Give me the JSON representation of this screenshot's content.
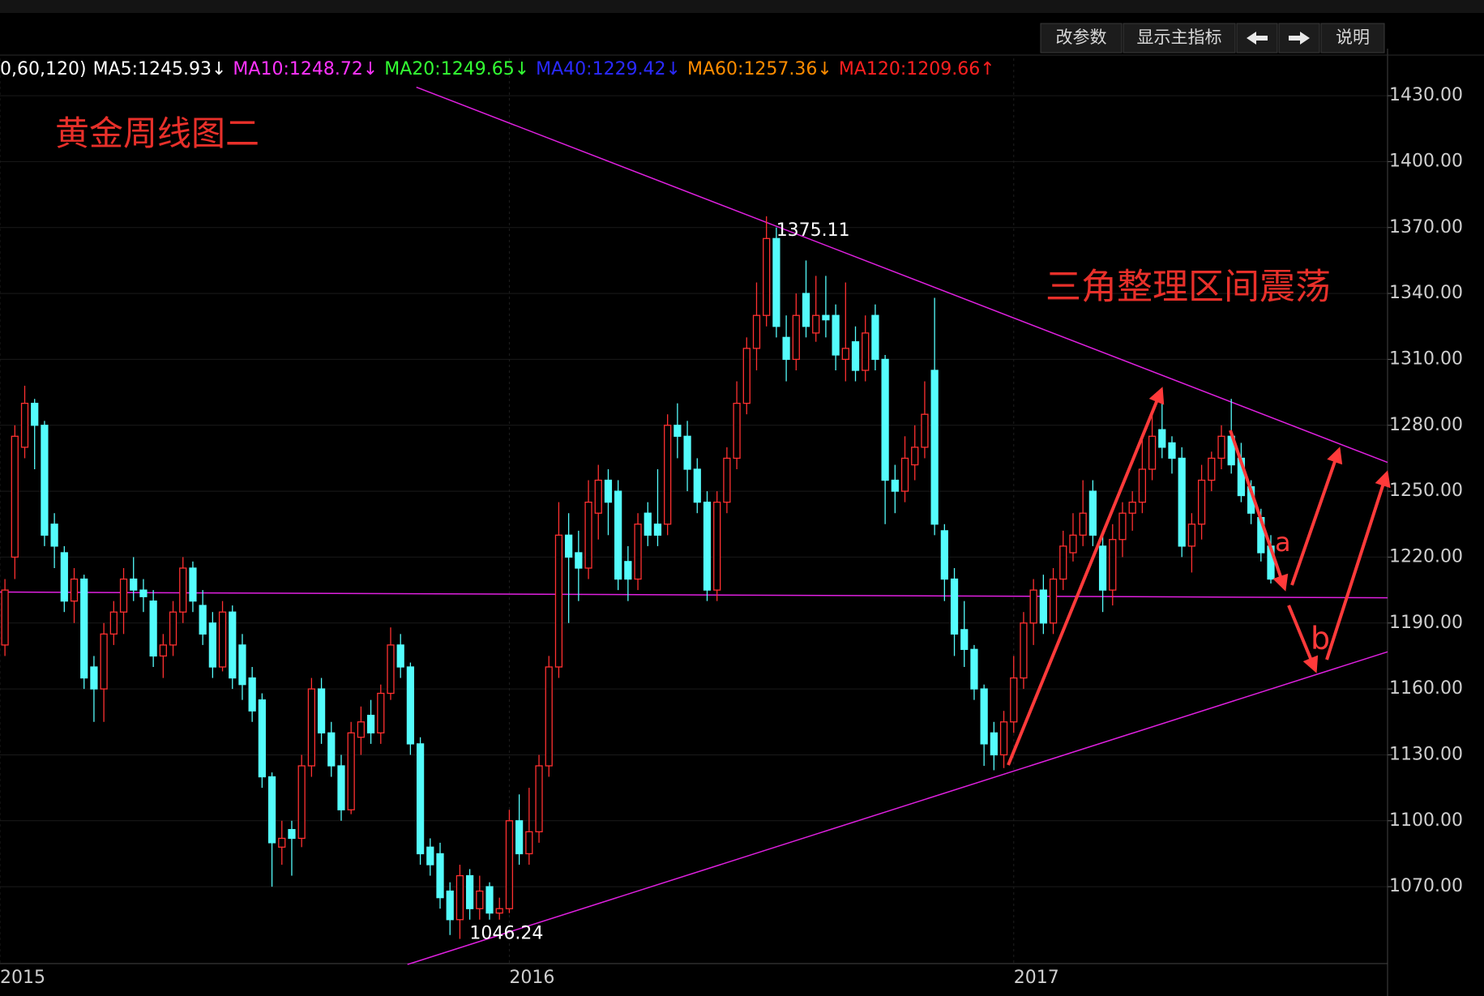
{
  "chart_data": {
    "type": "candlestick",
    "title": "黄金周线图二",
    "annotation": "三角整理区间震荡",
    "wave_labels": [
      "a",
      "b"
    ],
    "buttons": [
      "改参数",
      "显示主指标",
      "说明"
    ],
    "indicator_prefix": "0,60,120)",
    "indicators": [
      {
        "label": "MA5:1245.93↓",
        "color": "#ffffff"
      },
      {
        "label": "MA10:1248.72↓",
        "color": "#ff33ff"
      },
      {
        "label": "MA20:1249.65↓",
        "color": "#33ff33"
      },
      {
        "label": "MA40:1229.42↓",
        "color": "#2a2aff"
      },
      {
        "label": "MA60:1257.36↓",
        "color": "#ff8c00"
      },
      {
        "label": "MA120:1209.66↑",
        "color": "#ff2020"
      }
    ],
    "up_color": "#ff3030",
    "down_color": "#54fcfc",
    "xlim": [
      -0.5,
      139.8
    ],
    "ylim": [
      1035,
      1447
    ],
    "xticks": [
      {
        "value": -0.5,
        "label": "2015"
      },
      {
        "value": 51,
        "label": "2016"
      },
      {
        "value": 102,
        "label": "2017"
      }
    ],
    "yticks": [
      {
        "value": 1070,
        "label": "1070.00"
      },
      {
        "value": 1100,
        "label": "1100.00"
      },
      {
        "value": 1130,
        "label": "1130.00"
      },
      {
        "value": 1160,
        "label": "1160.00"
      },
      {
        "value": 1190,
        "label": "1190.00"
      },
      {
        "value": 1220,
        "label": "1220.00"
      },
      {
        "value": 1250,
        "label": "1250.00"
      },
      {
        "value": 1280,
        "label": "1280.00"
      },
      {
        "value": 1310,
        "label": "1310.00"
      },
      {
        "value": 1340,
        "label": "1340.00"
      },
      {
        "value": 1370,
        "label": "1370.00"
      },
      {
        "value": 1400,
        "label": "1400.00"
      },
      {
        "value": 1430,
        "label": "1430.00"
      }
    ],
    "grid": true,
    "trendlines": [
      {
        "color": "#e020e0",
        "points": [
          [
            41.6,
            1433.9
          ],
          [
            139.8,
            1263.1
          ]
        ]
      },
      {
        "color": "#e020e0",
        "points": [
          [
            -0.5,
            1204.1
          ],
          [
            139.8,
            1201.5
          ]
        ]
      },
      {
        "color": "#e020e0",
        "points": [
          [
            40.7,
            1034.6
          ],
          [
            139.8,
            1176.9
          ]
        ]
      }
    ],
    "ohlc": [
      [
        1180,
        1210,
        1175,
        1205
      ],
      [
        1220,
        1280,
        1210,
        1275
      ],
      [
        1270,
        1298,
        1265,
        1290
      ],
      [
        1290,
        1292,
        1260,
        1280
      ],
      [
        1280,
        1282,
        1225,
        1230
      ],
      [
        1235,
        1240,
        1215,
        1225
      ],
      [
        1222,
        1225,
        1195,
        1200
      ],
      [
        1200,
        1215,
        1190,
        1210
      ],
      [
        1210,
        1212,
        1160,
        1165
      ],
      [
        1170,
        1175,
        1145,
        1160
      ],
      [
        1160,
        1190,
        1145,
        1185
      ],
      [
        1185,
        1200,
        1180,
        1195
      ],
      [
        1195,
        1215,
        1185,
        1210
      ],
      [
        1210,
        1220,
        1200,
        1205
      ],
      [
        1205,
        1210,
        1195,
        1202
      ],
      [
        1200,
        1205,
        1170,
        1175
      ],
      [
        1175,
        1185,
        1165,
        1180
      ],
      [
        1180,
        1200,
        1175,
        1195
      ],
      [
        1195,
        1220,
        1190,
        1215
      ],
      [
        1215,
        1218,
        1195,
        1200
      ],
      [
        1198,
        1205,
        1180,
        1185
      ],
      [
        1190,
        1195,
        1165,
        1170
      ],
      [
        1170,
        1200,
        1168,
        1195
      ],
      [
        1195,
        1198,
        1160,
        1165
      ],
      [
        1180,
        1185,
        1155,
        1162
      ],
      [
        1165,
        1170,
        1145,
        1150
      ],
      [
        1155,
        1158,
        1115,
        1120
      ],
      [
        1120,
        1122,
        1070,
        1090
      ],
      [
        1088,
        1100,
        1080,
        1092
      ],
      [
        1096,
        1100,
        1075,
        1092
      ],
      [
        1092,
        1130,
        1088,
        1125
      ],
      [
        1125,
        1165,
        1120,
        1160
      ],
      [
        1160,
        1165,
        1135,
        1140
      ],
      [
        1140,
        1145,
        1120,
        1125
      ],
      [
        1125,
        1130,
        1100,
        1105
      ],
      [
        1105,
        1145,
        1103,
        1140
      ],
      [
        1138,
        1152,
        1130,
        1145
      ],
      [
        1148,
        1155,
        1135,
        1140
      ],
      [
        1140,
        1162,
        1135,
        1158
      ],
      [
        1158,
        1188,
        1155,
        1180
      ],
      [
        1180,
        1185,
        1165,
        1170
      ],
      [
        1170,
        1172,
        1130,
        1135
      ],
      [
        1135,
        1138,
        1080,
        1085
      ],
      [
        1088,
        1092,
        1075,
        1080
      ],
      [
        1085,
        1090,
        1060,
        1065
      ],
      [
        1068,
        1072,
        1048,
        1055
      ],
      [
        1055,
        1080,
        1046.24,
        1075
      ],
      [
        1075,
        1078,
        1055,
        1060
      ],
      [
        1060,
        1075,
        1055,
        1068
      ],
      [
        1070,
        1072,
        1055,
        1058
      ],
      [
        1058,
        1065,
        1055,
        1060
      ],
      [
        1060,
        1105,
        1058,
        1100
      ],
      [
        1100,
        1112,
        1080,
        1085
      ],
      [
        1085,
        1115,
        1080,
        1095
      ],
      [
        1095,
        1130,
        1090,
        1125
      ],
      [
        1125,
        1175,
        1120,
        1170
      ],
      [
        1170,
        1245,
        1165,
        1230
      ],
      [
        1230,
        1240,
        1190,
        1220
      ],
      [
        1222,
        1232,
        1200,
        1215
      ],
      [
        1215,
        1255,
        1210,
        1245
      ],
      [
        1240,
        1262,
        1228,
        1255
      ],
      [
        1255,
        1260,
        1230,
        1245
      ],
      [
        1250,
        1255,
        1205,
        1210
      ],
      [
        1218,
        1225,
        1200,
        1210
      ],
      [
        1210,
        1240,
        1205,
        1235
      ],
      [
        1240,
        1245,
        1225,
        1230
      ],
      [
        1235,
        1260,
        1225,
        1230
      ],
      [
        1235,
        1285,
        1230,
        1280
      ],
      [
        1280,
        1290,
        1265,
        1275
      ],
      [
        1275,
        1282,
        1250,
        1260
      ],
      [
        1260,
        1265,
        1240,
        1245
      ],
      [
        1245,
        1250,
        1200,
        1205
      ],
      [
        1205,
        1250,
        1200,
        1245
      ],
      [
        1245,
        1270,
        1240,
        1265
      ],
      [
        1265,
        1300,
        1260,
        1290
      ],
      [
        1290,
        1320,
        1285,
        1315
      ],
      [
        1315,
        1345,
        1305,
        1330
      ],
      [
        1330,
        1375.11,
        1325,
        1365
      ],
      [
        1365,
        1370,
        1320,
        1325
      ],
      [
        1320,
        1330,
        1300,
        1310
      ],
      [
        1310,
        1340,
        1305,
        1330
      ],
      [
        1340,
        1355,
        1320,
        1325
      ],
      [
        1322,
        1348,
        1318,
        1330
      ],
      [
        1330,
        1348,
        1320,
        1328
      ],
      [
        1330,
        1335,
        1305,
        1312
      ],
      [
        1310,
        1345,
        1300,
        1315
      ],
      [
        1318,
        1325,
        1300,
        1305
      ],
      [
        1305,
        1330,
        1300,
        1322
      ],
      [
        1330,
        1335,
        1305,
        1310
      ],
      [
        1310,
        1312,
        1235,
        1255
      ],
      [
        1255,
        1262,
        1240,
        1250
      ],
      [
        1250,
        1275,
        1245,
        1265
      ],
      [
        1262,
        1280,
        1255,
        1270
      ],
      [
        1270,
        1300,
        1265,
        1285
      ],
      [
        1305,
        1338,
        1230,
        1235
      ],
      [
        1232,
        1235,
        1200,
        1210
      ],
      [
        1210,
        1215,
        1175,
        1185
      ],
      [
        1187,
        1200,
        1170,
        1178
      ],
      [
        1178,
        1180,
        1155,
        1160
      ],
      [
        1160,
        1162,
        1125,
        1135
      ],
      [
        1140,
        1145,
        1123,
        1130
      ],
      [
        1130,
        1150,
        1124,
        1145
      ],
      [
        1145,
        1175,
        1140,
        1165
      ],
      [
        1165,
        1195,
        1160,
        1190
      ],
      [
        1190,
        1210,
        1180,
        1205
      ],
      [
        1205,
        1212,
        1185,
        1190
      ],
      [
        1190,
        1215,
        1185,
        1210
      ],
      [
        1210,
        1232,
        1205,
        1225
      ],
      [
        1222,
        1240,
        1218,
        1230
      ],
      [
        1230,
        1255,
        1225,
        1240
      ],
      [
        1250,
        1255,
        1225,
        1230
      ],
      [
        1225,
        1230,
        1195,
        1205
      ],
      [
        1205,
        1235,
        1198,
        1228
      ],
      [
        1228,
        1245,
        1220,
        1240
      ],
      [
        1240,
        1250,
        1232,
        1245
      ],
      [
        1245,
        1275,
        1240,
        1260
      ],
      [
        1260,
        1285,
        1255,
        1275
      ],
      [
        1278,
        1290,
        1265,
        1270
      ],
      [
        1272,
        1275,
        1258,
        1265
      ],
      [
        1265,
        1270,
        1220,
        1225
      ],
      [
        1225,
        1240,
        1213,
        1235
      ],
      [
        1235,
        1262,
        1228,
        1255
      ],
      [
        1255,
        1268,
        1250,
        1265
      ],
      [
        1265,
        1280,
        1260,
        1275
      ],
      [
        1275,
        1292,
        1258,
        1262
      ],
      [
        1265,
        1272,
        1245,
        1248
      ],
      [
        1252,
        1255,
        1235,
        1240
      ],
      [
        1238,
        1242,
        1218,
        1222
      ],
      [
        1225,
        1230,
        1208,
        1210
      ]
    ]
  }
}
